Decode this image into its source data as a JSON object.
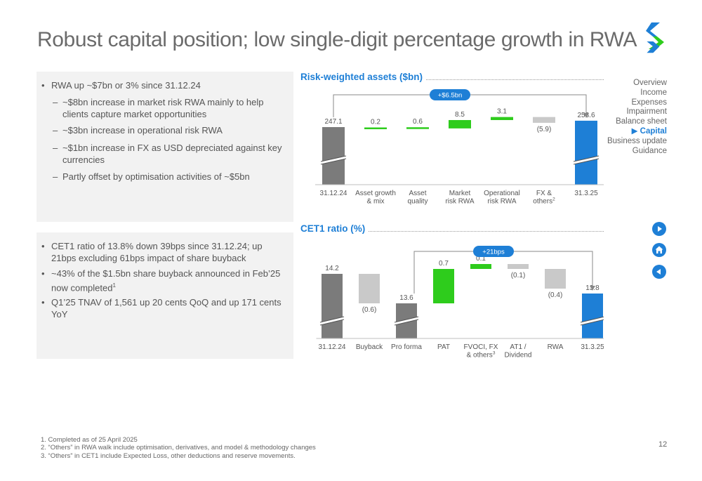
{
  "title": "Robust capital position; low single-digit percentage growth in RWA",
  "logo_icon": "standard-chartered-logo-icon",
  "panel1": {
    "bullet1": "RWA up ~$7bn or 3% since 31.12.24",
    "sub1": "~$8bn increase in market risk RWA mainly to help clients capture market opportunities",
    "sub2": "~$3bn increase in operational risk RWA",
    "sub3": "~$1bn increase in FX as USD depreciated against key currencies",
    "sub4": "Partly offset by optimisation activities of ~$5bn"
  },
  "panel2": {
    "bullet1": "CET1 ratio of 13.8% down 39bps since 31.12.24; up 21bps excluding 61bps impact of share buyback",
    "bullet2": "~43% of the $1.5bn share buyback announced in Feb’25 now completed",
    "bullet2_sup": "1",
    "bullet3": "Q1’25 TNAV of 1,561 up 20 cents QoQ and up 171 cents YoY"
  },
  "nav": {
    "items": [
      "Overview",
      "Income",
      "Expenses",
      "Impairment",
      "Balance sheet",
      "Capital",
      "Business update",
      "Guidance"
    ],
    "active_index": 5,
    "active_marker": "▶"
  },
  "nav_buttons": [
    "next-arrow-icon",
    "home-icon",
    "back-arrow-icon"
  ],
  "colors": {
    "blue": "#1e7fd6",
    "dark_grey": "#7b7b7b",
    "light_grey": "#c9c9c9",
    "green": "#2ecc1c",
    "text": "#555555"
  },
  "chart_data": [
    {
      "type": "bar",
      "subtype": "waterfall",
      "title": "Risk-weighted assets ($bn)",
      "categories": [
        "31.12.24",
        "Asset growth & mix",
        "Asset quality",
        "Market risk RWA",
        "Operational risk RWA",
        "FX & others",
        "31.3.25"
      ],
      "category_lines": [
        [
          "31.12.24"
        ],
        [
          "Asset growth",
          "& mix"
        ],
        [
          "Asset",
          "quality"
        ],
        [
          "Market",
          "risk RWA"
        ],
        [
          "Operational",
          "risk RWA"
        ],
        [
          "FX &",
          "others"
        ],
        [
          "31.3.25"
        ]
      ],
      "category_sups": [
        "",
        "",
        "",
        "",
        "",
        "2",
        ""
      ],
      "values": [
        247.1,
        0.2,
        0.6,
        8.5,
        3.1,
        -5.9,
        253.6
      ],
      "labels": [
        "247.1",
        "0.2",
        "0.6",
        "8.5",
        "3.1",
        "(5.9)",
        "253.6"
      ],
      "kinds": [
        "total",
        "delta",
        "delta",
        "delta",
        "delta",
        "delta",
        "total"
      ],
      "annotation": "+$6.5bn",
      "axis_broken": true
    },
    {
      "type": "bar",
      "subtype": "waterfall",
      "title": "CET1 ratio (%)",
      "categories": [
        "31.12.24",
        "Buyback",
        "Pro forma",
        "PAT",
        "FVOCI, FX & others",
        "AT1 / Dividend",
        "RWA",
        "31.3.25"
      ],
      "category_lines": [
        [
          "31.12.24"
        ],
        [
          "Buyback"
        ],
        [
          "Pro forma"
        ],
        [
          "PAT"
        ],
        [
          "FVOCI, FX",
          "& others"
        ],
        [
          "AT1 /",
          "Dividend"
        ],
        [
          "RWA"
        ],
        [
          "31.3.25"
        ]
      ],
      "category_sups": [
        "",
        "",
        "",
        "",
        "3",
        "",
        "",
        ""
      ],
      "values": [
        14.2,
        -0.6,
        13.6,
        0.7,
        0.1,
        -0.1,
        -0.4,
        13.8
      ],
      "labels": [
        "14.2",
        "(0.6)",
        "13.6",
        "0.7",
        "0.1",
        "(0.1)",
        "(0.4)",
        "13.8"
      ],
      "kinds": [
        "total",
        "delta",
        "total",
        "delta",
        "delta",
        "delta",
        "delta",
        "total"
      ],
      "annotation": "+21bps",
      "axis_broken": true
    }
  ],
  "footnotes": [
    "1.    Completed as of 25 April 2025",
    "2.    “Others” in RWA walk include optimisation, derivatives, and model & methodology changes",
    "3.    “Others” in CET1 include Expected Loss, other deductions and reserve movements."
  ],
  "page_number": "12"
}
